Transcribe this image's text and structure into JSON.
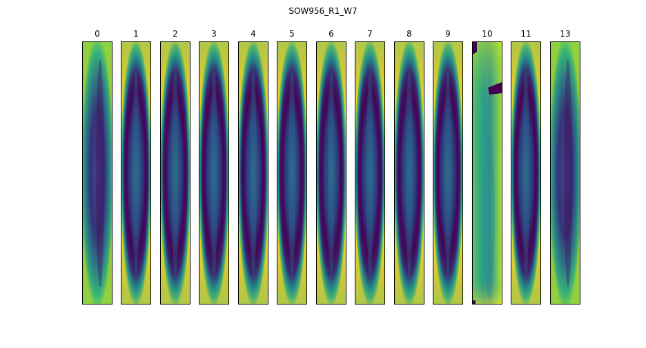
{
  "figure": {
    "title": "SOW956_R1_W7"
  },
  "panels": [
    {
      "label": "0",
      "style": "diffuse"
    },
    {
      "label": "1",
      "style": "ring"
    },
    {
      "label": "2",
      "style": "ring"
    },
    {
      "label": "3",
      "style": "ring"
    },
    {
      "label": "4",
      "style": "ring"
    },
    {
      "label": "5",
      "style": "ring"
    },
    {
      "label": "6",
      "style": "ring"
    },
    {
      "label": "7",
      "style": "ring"
    },
    {
      "label": "8",
      "style": "ring"
    },
    {
      "label": "9",
      "style": "ring"
    },
    {
      "label": "10",
      "style": "bright"
    },
    {
      "label": "11",
      "style": "ring"
    },
    {
      "label": "13",
      "style": "diffuse"
    }
  ],
  "colormap": "viridis"
}
